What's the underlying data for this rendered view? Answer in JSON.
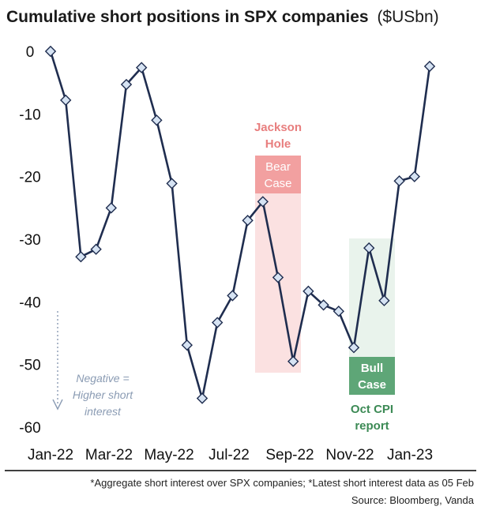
{
  "chart_data": {
    "type": "line",
    "title": "Cumulative short positions in SPX companies",
    "title_unit": "($USbn)",
    "x_tick_labels": [
      "Jan-22",
      "Mar-22",
      "May-22",
      "Jul-22",
      "Sep-22",
      "Nov-22",
      "Jan-23"
    ],
    "y_tick_labels": [
      "0",
      "-10",
      "-20",
      "-30",
      "-40",
      "-50",
      "-60"
    ],
    "ylim": [
      -60,
      0
    ],
    "grid": false,
    "series": [
      {
        "values": [
          0,
          -7.8,
          -32.8,
          -31.6,
          -25.0,
          -5.3,
          -2.6,
          -11.0,
          -21.1,
          -46.9,
          -55.4,
          -43.3,
          -39.0,
          -27.0,
          -24.0,
          -36.1,
          -49.5,
          -38.3,
          -40.5,
          -41.5,
          -47.3,
          -31.4,
          -39.8,
          -20.7,
          -20.0,
          -2.4
        ],
        "color": "#1f2d4f"
      }
    ],
    "annotations": {
      "jackson_hole": "Jackson\nHole",
      "bear_case": "Bear\nCase",
      "bull_case": "Bull\nCase",
      "oct_cpi": "Oct CPI\nreport",
      "negative_note": "Negative =\nHigher short\ninterest"
    },
    "colors": {
      "line": "#1f2d4f",
      "marker_fill": "#d6e3f3",
      "bear_shade": "#fbe1e1",
      "bear_label_bg": "#f2a0a0",
      "bear_text": "#e87e7e",
      "bull_shade": "#e9f3ec",
      "bull_label_bg": "#5ea677",
      "bull_text": "#3c8a55",
      "note_text": "#8a9bb3"
    }
  },
  "footer": {
    "note": "*Aggregate short interest over SPX companies; *Latest short interest data as 05 Feb",
    "source": "Source: Bloomberg, Vanda"
  }
}
